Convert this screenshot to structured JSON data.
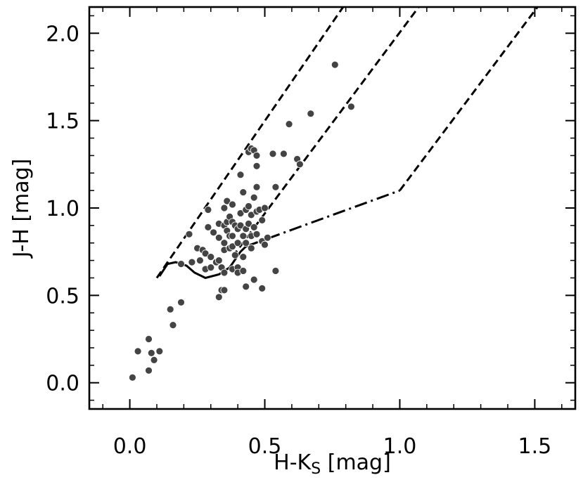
{
  "chart_data": {
    "type": "scatter",
    "xlabel_main": "H-K",
    "xlabel_sub": "S",
    "xlabel_unit": " [mag]",
    "ylabel": "J-H [mag]",
    "xlim": [
      -0.15,
      1.65
    ],
    "ylim": [
      -0.15,
      2.15
    ],
    "x_ticks": [
      0.0,
      0.5,
      1.0,
      1.5
    ],
    "x_tick_labels": [
      "0.0",
      "0.5",
      "1.0",
      "1.5"
    ],
    "y_ticks": [
      0.0,
      0.5,
      1.0,
      1.5,
      2.0
    ],
    "y_tick_labels": [
      "0.0",
      "0.5",
      "1.0",
      "1.5",
      "2.0"
    ],
    "x_minor_step": 0.1,
    "y_minor_step": 0.1,
    "grid": false,
    "legend": "none",
    "marker_color": "#444444",
    "marker_edge_color": "#ffffff",
    "points": [
      [
        0.01,
        0.03
      ],
      [
        0.03,
        0.18
      ],
      [
        0.07,
        0.25
      ],
      [
        0.07,
        0.07
      ],
      [
        0.08,
        0.17
      ],
      [
        0.09,
        0.13
      ],
      [
        0.11,
        0.18
      ],
      [
        0.15,
        0.42
      ],
      [
        0.16,
        0.33
      ],
      [
        0.19,
        0.46
      ],
      [
        0.19,
        0.68
      ],
      [
        0.22,
        0.85
      ],
      [
        0.23,
        0.69
      ],
      [
        0.25,
        0.77
      ],
      [
        0.26,
        0.7
      ],
      [
        0.27,
        0.76
      ],
      [
        0.28,
        0.74
      ],
      [
        0.28,
        0.65
      ],
      [
        0.29,
        0.99
      ],
      [
        0.29,
        0.89
      ],
      [
        0.3,
        0.66
      ],
      [
        0.3,
        0.72
      ],
      [
        0.31,
        0.86
      ],
      [
        0.32,
        0.69
      ],
      [
        0.33,
        0.7
      ],
      [
        0.33,
        0.91
      ],
      [
        0.33,
        0.49
      ],
      [
        0.33,
        0.83
      ],
      [
        0.34,
        0.53
      ],
      [
        0.34,
        0.66
      ],
      [
        0.35,
        0.53
      ],
      [
        0.35,
        0.63
      ],
      [
        0.35,
        0.76
      ],
      [
        0.35,
        0.8
      ],
      [
        0.35,
        0.9
      ],
      [
        0.35,
        1.0
      ],
      [
        0.36,
        0.87
      ],
      [
        0.36,
        0.92
      ],
      [
        0.36,
        1.04
      ],
      [
        0.37,
        0.84
      ],
      [
        0.37,
        0.77
      ],
      [
        0.37,
        0.95
      ],
      [
        0.38,
        0.92
      ],
      [
        0.38,
        0.84
      ],
      [
        0.38,
        0.78
      ],
      [
        0.38,
        0.65
      ],
      [
        0.38,
        1.02
      ],
      [
        0.39,
        0.9
      ],
      [
        0.39,
        0.73
      ],
      [
        0.4,
        0.88
      ],
      [
        0.4,
        0.8
      ],
      [
        0.4,
        0.66
      ],
      [
        0.4,
        0.63
      ],
      [
        0.41,
        0.97
      ],
      [
        0.41,
        1.19
      ],
      [
        0.41,
        0.9
      ],
      [
        0.42,
        0.84
      ],
      [
        0.42,
        0.72
      ],
      [
        0.42,
        0.64
      ],
      [
        0.42,
        1.09
      ],
      [
        0.43,
        0.99
      ],
      [
        0.43,
        0.55
      ],
      [
        0.43,
        0.8
      ],
      [
        0.43,
        0.88
      ],
      [
        0.44,
        1.01
      ],
      [
        0.44,
        0.91
      ],
      [
        0.44,
        1.32
      ],
      [
        0.45,
        1.34
      ],
      [
        0.45,
        0.96
      ],
      [
        0.45,
        0.84
      ],
      [
        0.45,
        0.77
      ],
      [
        0.46,
        1.06
      ],
      [
        0.46,
        0.89
      ],
      [
        0.46,
        1.33
      ],
      [
        0.47,
        1.3
      ],
      [
        0.47,
        1.12
      ],
      [
        0.47,
        0.98
      ],
      [
        0.47,
        0.85
      ],
      [
        0.47,
        1.24
      ],
      [
        0.48,
        0.99
      ],
      [
        0.49,
        0.93
      ],
      [
        0.49,
        0.81
      ],
      [
        0.49,
        0.54
      ],
      [
        0.5,
        1.0
      ],
      [
        0.5,
        0.79
      ],
      [
        0.51,
        0.83
      ],
      [
        0.53,
        1.31
      ],
      [
        0.54,
        0.64
      ],
      [
        0.54,
        1.12
      ],
      [
        0.57,
        1.31
      ],
      [
        0.59,
        1.48
      ],
      [
        0.62,
        1.28
      ],
      [
        0.63,
        1.25
      ],
      [
        0.67,
        1.54
      ],
      [
        0.76,
        1.82
      ],
      [
        0.82,
        1.58
      ],
      [
        0.46,
        0.59
      ]
    ],
    "solid_curve": [
      [
        0.11,
        0.61
      ],
      [
        0.14,
        0.68
      ],
      [
        0.17,
        0.69
      ],
      [
        0.21,
        0.67
      ],
      [
        0.24,
        0.63
      ],
      [
        0.28,
        0.6
      ],
      [
        0.33,
        0.62
      ],
      [
        0.37,
        0.66
      ],
      [
        0.41,
        0.75
      ],
      [
        0.43,
        0.78
      ]
    ],
    "dashdot_line": [
      [
        0.43,
        0.78
      ],
      [
        1.0,
        1.1
      ]
    ],
    "dashed_lines": [
      [
        [
          0.1,
          0.6
        ],
        [
          0.79,
          2.15
        ]
      ],
      [
        [
          0.38,
          0.72
        ],
        [
          1.07,
          2.15
        ]
      ],
      [
        [
          1.0,
          1.1
        ],
        [
          1.51,
          2.15
        ]
      ]
    ]
  }
}
